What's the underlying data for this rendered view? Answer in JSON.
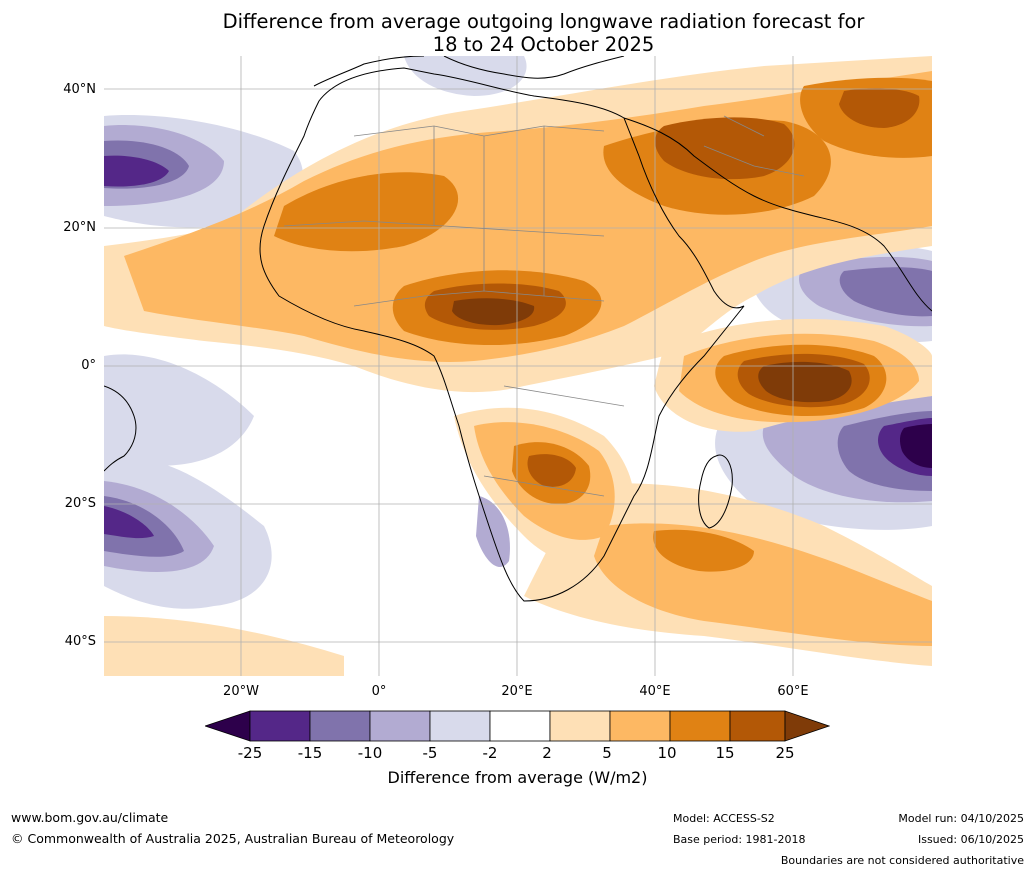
{
  "title": {
    "line1": "Difference from average outgoing longwave radiation forecast for",
    "line2": "18 to 24 October 2025"
  },
  "map": {
    "lat_labels": [
      "40°N",
      "20°N",
      "0°",
      "20°S",
      "40°S"
    ],
    "lon_labels": [
      "20°W",
      "0°",
      "20°E",
      "40°E",
      "60°E"
    ]
  },
  "colorbar": {
    "colors": [
      "#2d004b",
      "#542788",
      "#8073ac",
      "#b2abd2",
      "#d8daeb",
      "#ffffff",
      "#fee0b6",
      "#fdb863",
      "#e08214",
      "#b35806",
      "#7f3b08"
    ],
    "ticks": [
      "-25",
      "-15",
      "-10",
      "-5",
      "-2",
      "2",
      "5",
      "10",
      "15",
      "25"
    ],
    "label": "Difference from average (W/m2)"
  },
  "footer": {
    "website": "www.bom.gov.au/climate",
    "copyright": "© Commonwealth of Australia 2025, Australian Bureau of Meteorology",
    "model": "Model: ACCESS-S2",
    "base_period": "Base period: 1981-2018",
    "model_run": "Model run: 04/10/2025",
    "issued": "Issued: 06/10/2025",
    "disclaimer": "Boundaries are not considered authoritative"
  }
}
